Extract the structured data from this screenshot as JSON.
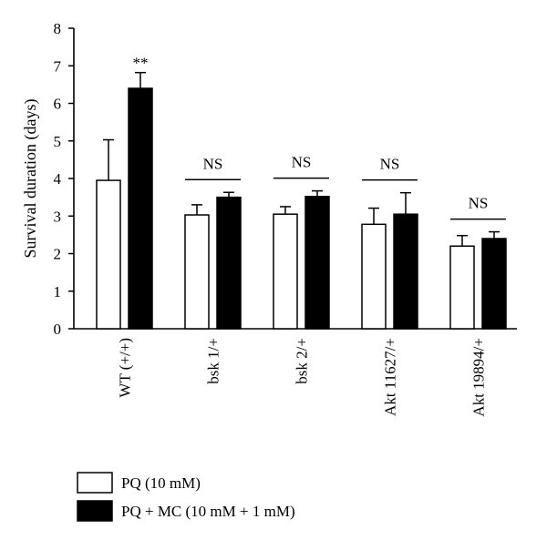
{
  "chart_data": {
    "type": "bar",
    "title": "",
    "xlabel": "",
    "ylabel": "Survival duration (days)",
    "ylim": [
      0,
      8
    ],
    "yticks": [
      0,
      1,
      2,
      3,
      4,
      5,
      6,
      7,
      8
    ],
    "categories": [
      "WT (+/+)",
      "bsk 1/+",
      "bsk 2/+",
      "Akt 11627/+",
      "Akt 19894/+"
    ],
    "series": [
      {
        "name": "PQ (10 mM)",
        "color": "#ffffff",
        "values": [
          3.95,
          3.03,
          3.05,
          2.78,
          2.2
        ],
        "errors": [
          1.08,
          0.27,
          0.2,
          0.43,
          0.28
        ]
      },
      {
        "name": "PQ + MC (10 mM + 1 mM)",
        "color": "#000000",
        "values": [
          6.4,
          3.5,
          3.52,
          3.05,
          2.4
        ],
        "errors": [
          0.42,
          0.13,
          0.15,
          0.57,
          0.18
        ]
      }
    ],
    "annotations": [
      "**",
      "NS",
      "NS",
      "NS",
      "NS"
    ],
    "grid": false,
    "legend_position": "bottom-left"
  }
}
